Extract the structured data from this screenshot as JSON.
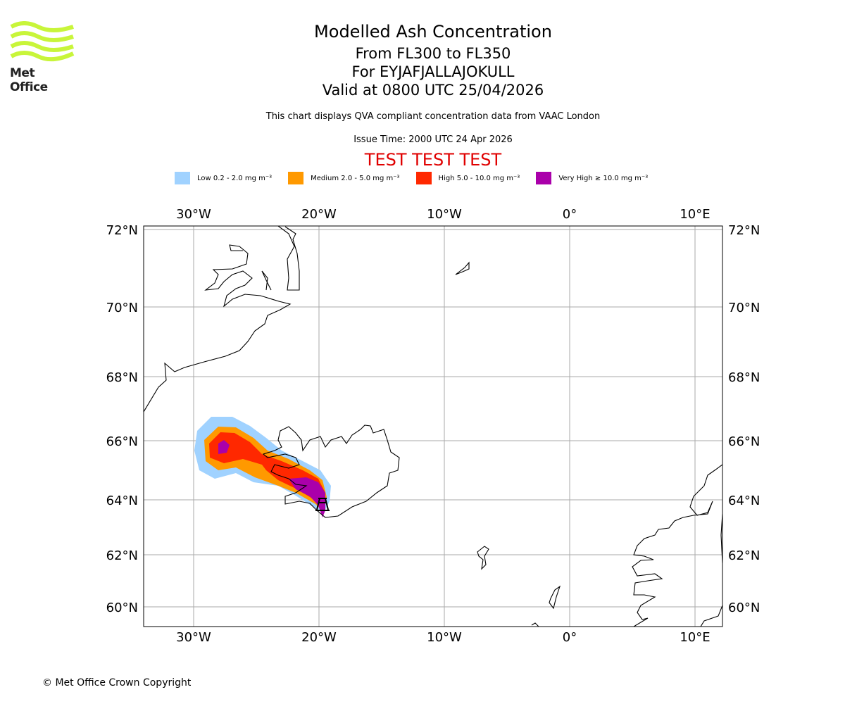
{
  "logo": {
    "text": "Met Office",
    "color": "#c8f53a"
  },
  "header": {
    "title": "Modelled Ash Concentration",
    "levels": "From FL300 to FL350",
    "volcano": "For EYJAFJALLAJOKULL",
    "valid": "Valid at 0800 UTC 25/04/2026",
    "subtitle": "This chart displays QVA compliant concentration data from VAAC London",
    "issue_time": "Issue Time: 2000 UTC 24 Apr 2026",
    "test_banner": "TEST TEST TEST"
  },
  "legend": [
    {
      "label": "Low 0.2 - 2.0 mg m⁻³",
      "color": "#a0d2ff"
    },
    {
      "label": "Medium 2.0 - 5.0 mg m⁻³",
      "color": "#ff9900"
    },
    {
      "label": "High 5.0 - 10.0 mg m⁻³",
      "color": "#ff2800"
    },
    {
      "label": "Very High ≥ 10.0 mg m⁻³",
      "color": "#aa00aa"
    }
  ],
  "map": {
    "lon_ticks": [
      {
        "value": -30,
        "label": "30°W"
      },
      {
        "value": -20,
        "label": "20°W"
      },
      {
        "value": -10,
        "label": "10°W"
      },
      {
        "value": 0,
        "label": "0°"
      },
      {
        "value": 10,
        "label": "10°E"
      }
    ],
    "lat_ticks": [
      {
        "value": 72,
        "label": "72°N"
      },
      {
        "value": 70,
        "label": "70°N"
      },
      {
        "value": 68,
        "label": "68°N"
      },
      {
        "value": 66,
        "label": "66°N"
      },
      {
        "value": 64,
        "label": "64°N"
      },
      {
        "value": 62,
        "label": "62°N"
      },
      {
        "value": 60,
        "label": "60°N"
      }
    ],
    "volcano_icon": "volcano-icon"
  },
  "footer": {
    "copyright": "© Met Office Crown Copyright"
  }
}
